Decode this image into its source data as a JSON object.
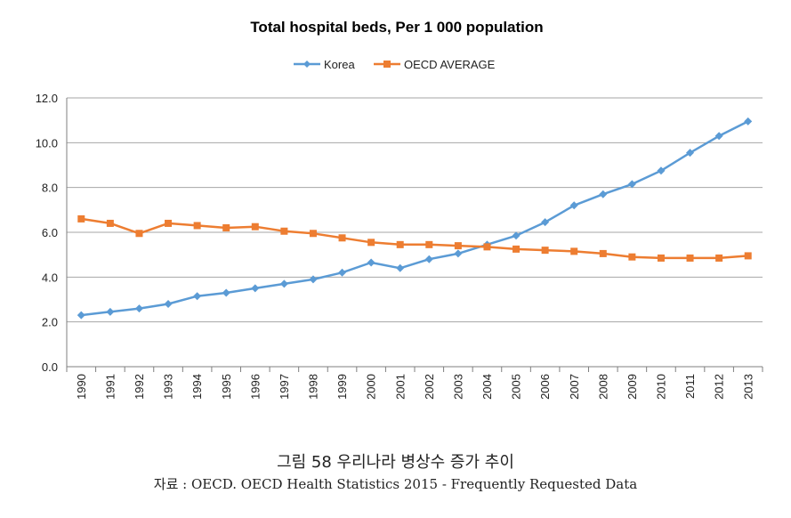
{
  "colors": {
    "korea": "#5b9bd5",
    "oecd": "#ed7d31",
    "grid": "#a6a6a6",
    "axis": "#7f7f7f"
  },
  "chart_data": {
    "type": "line",
    "title": "Total hospital beds, Per 1 000 population",
    "xlabel": "",
    "ylabel": "",
    "x": [
      "1990",
      "1991",
      "1992",
      "1993",
      "1994",
      "1995",
      "1996",
      "1997",
      "1998",
      "1999",
      "2000",
      "2001",
      "2002",
      "2003",
      "2004",
      "2005",
      "2006",
      "2007",
      "2008",
      "2009",
      "2010",
      "2011",
      "2012",
      "2013"
    ],
    "y_ticks": [
      "0.0",
      "2.0",
      "4.0",
      "6.0",
      "8.0",
      "10.0",
      "12.0"
    ],
    "ylim": [
      0,
      12
    ],
    "grid": true,
    "legend_position": "top",
    "series": [
      {
        "name": "Korea",
        "marker": "diamond",
        "values": [
          2.3,
          2.45,
          2.6,
          2.8,
          3.15,
          3.3,
          3.5,
          3.7,
          3.9,
          4.2,
          4.65,
          4.4,
          4.8,
          5.05,
          5.45,
          5.85,
          6.45,
          7.2,
          7.7,
          8.15,
          8.75,
          9.55,
          10.3,
          10.95
        ]
      },
      {
        "name": "OECD AVERAGE",
        "marker": "square",
        "values": [
          6.6,
          6.4,
          5.95,
          6.4,
          6.3,
          6.2,
          6.25,
          6.05,
          5.95,
          5.75,
          5.55,
          5.45,
          5.45,
          5.4,
          5.35,
          5.25,
          5.2,
          5.15,
          5.05,
          4.9,
          4.85,
          4.85,
          4.85,
          4.95
        ]
      }
    ]
  },
  "caption": {
    "main": "그림 58 우리나라 병상수 증가 추이",
    "source": "자료 : OECD. OECD Health Statistics 2015 - Frequently Requested Data"
  }
}
